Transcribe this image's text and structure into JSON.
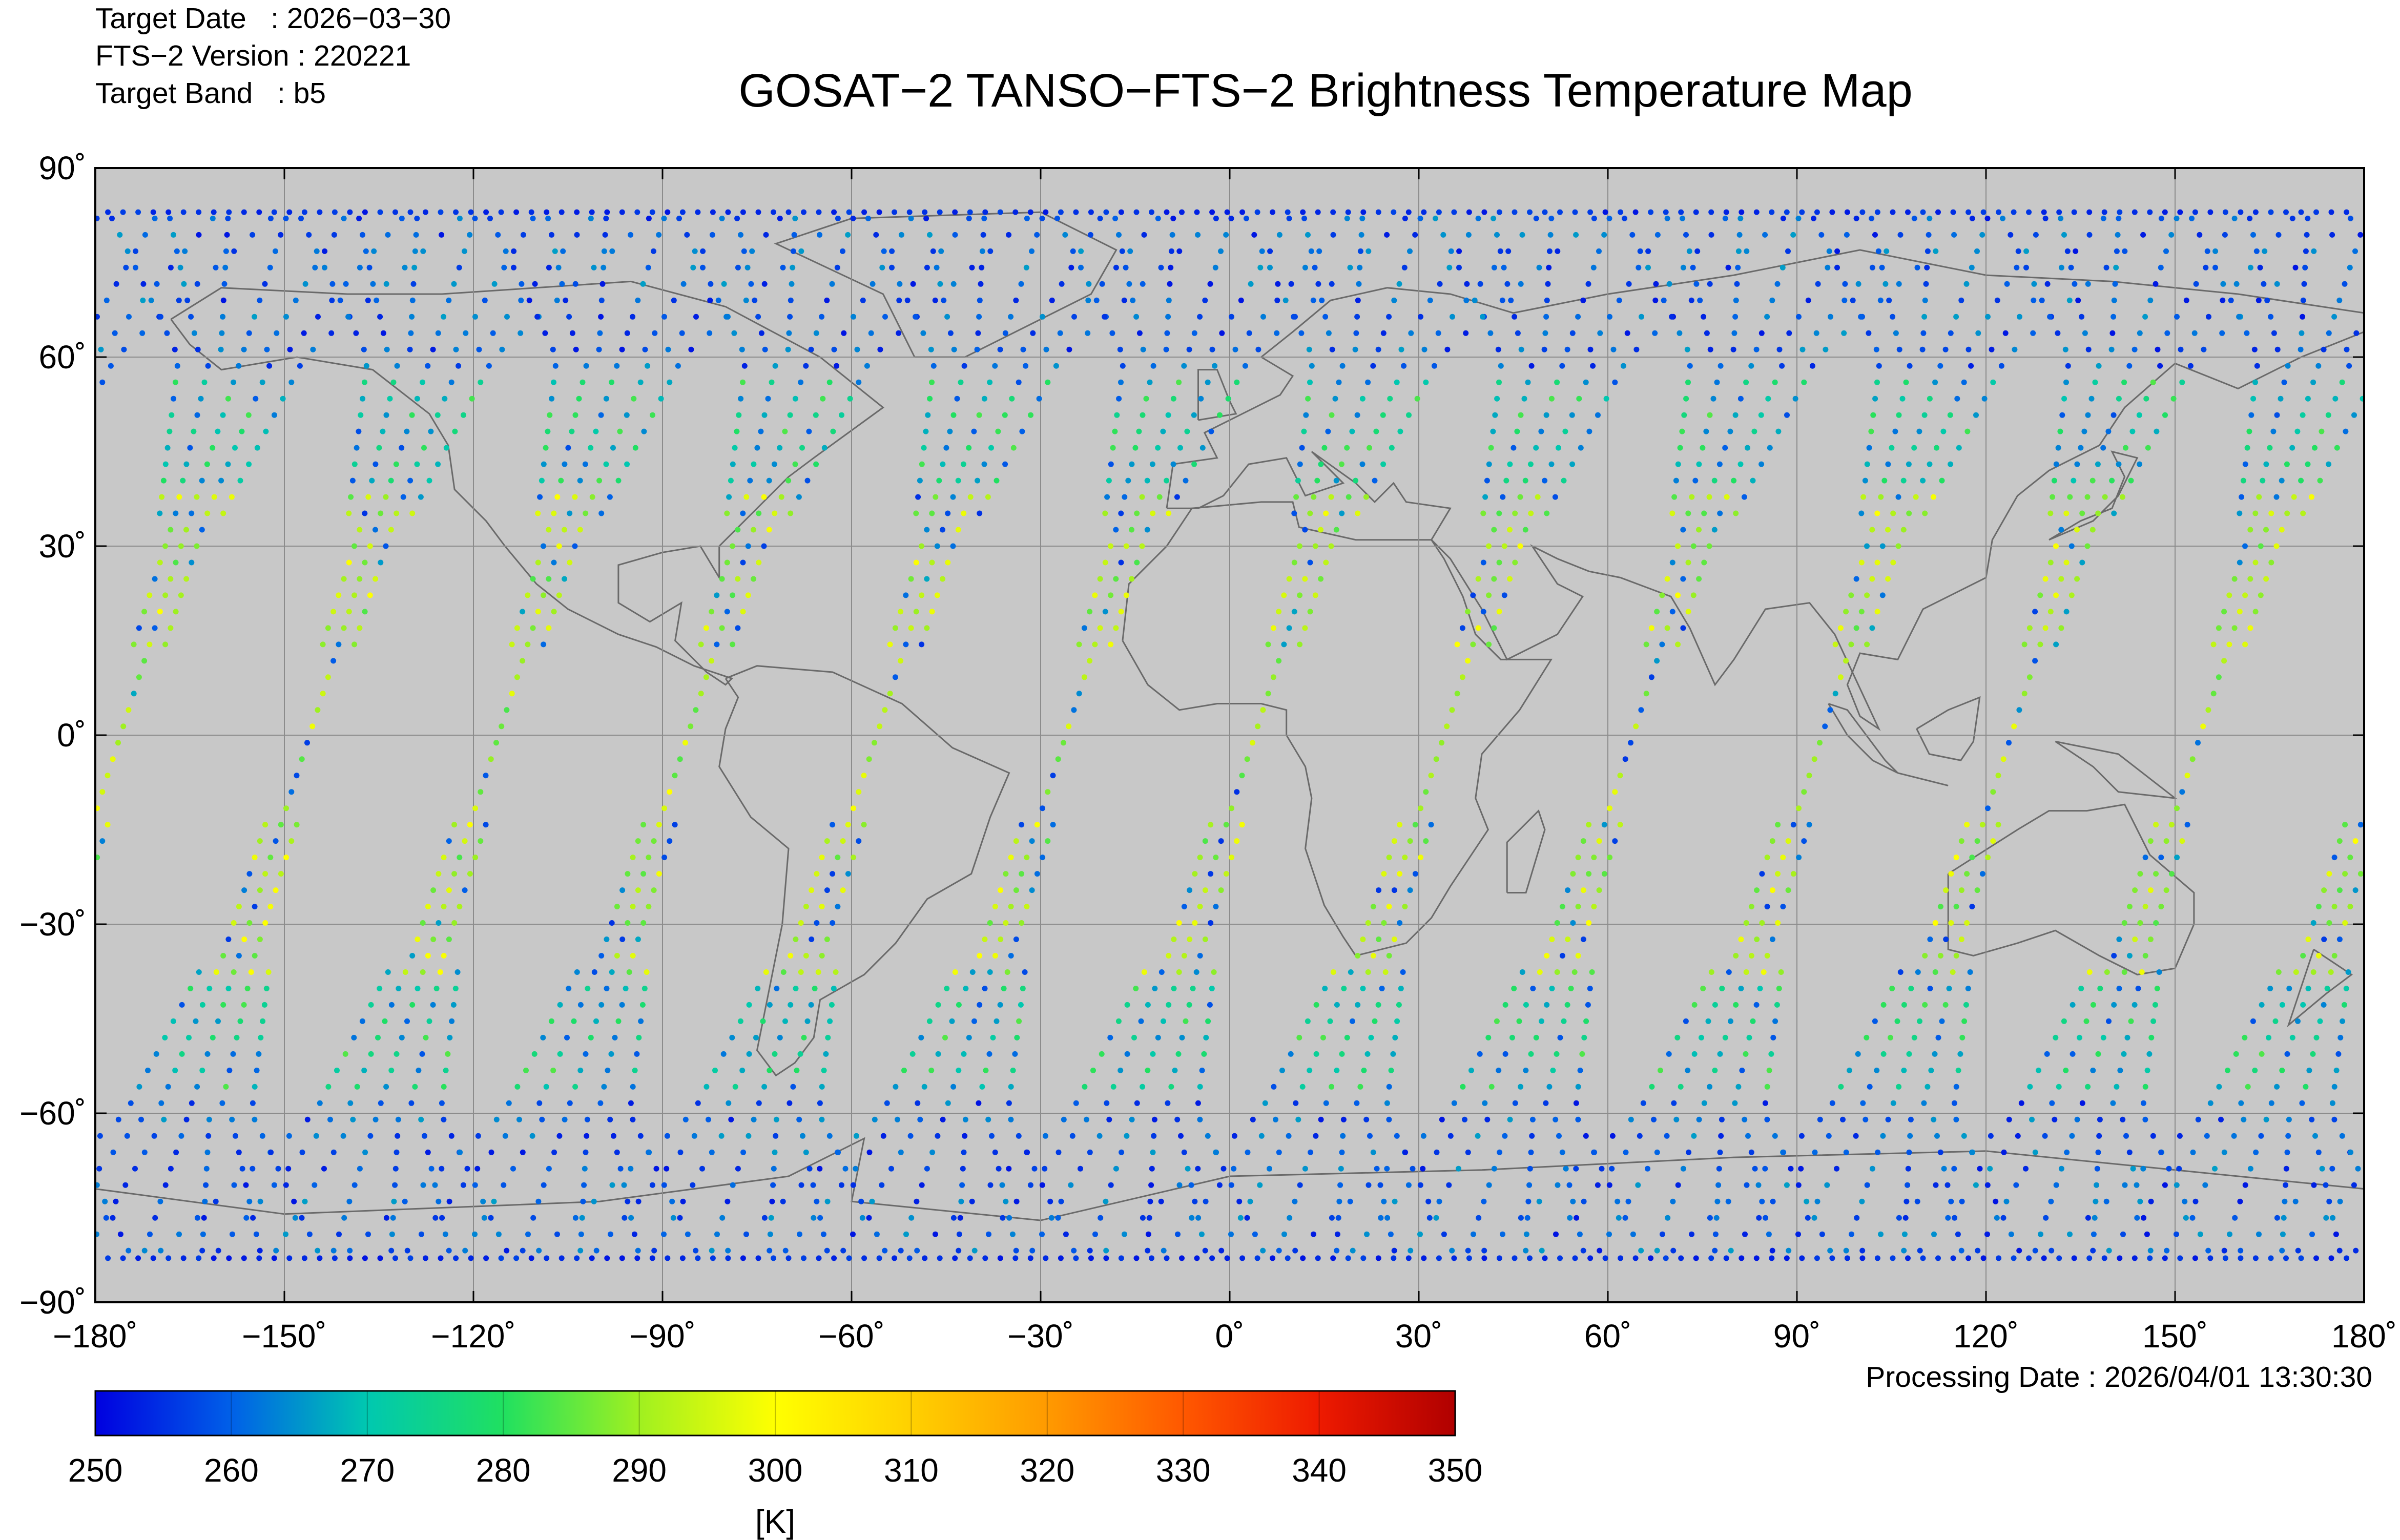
{
  "header": {
    "target_date_label": "Target Date",
    "target_date_value": "2026−03−30",
    "version_label": "FTS−2 Version",
    "version_value": "220221",
    "band_label": "Target Band",
    "band_value": "b5"
  },
  "title": "GOSAT−2 TANSO−FTS−2 Brightness Temperature Map",
  "processing": {
    "label": "Processing Date",
    "value": "2026/04/01 13:30:30"
  },
  "map": {
    "projection": "equirectangular",
    "lon_range": [
      -180,
      180
    ],
    "lat_range": [
      -90,
      90
    ],
    "background_color": "#c8c8c8",
    "gridlines": true,
    "lon_ticks": [
      "−180˚",
      "−150˚",
      "−120˚",
      "−90˚",
      "−60˚",
      "−30˚",
      "0˚",
      "30˚",
      "60˚",
      "90˚",
      "120˚",
      "150˚",
      "180˚"
    ],
    "lat_ticks": [
      "90˚",
      "60˚",
      "30˚",
      "0˚",
      "−30˚",
      "−60˚",
      "−90˚"
    ]
  },
  "colorbar": {
    "min": 250,
    "max": 350,
    "tick_labels": [
      "250",
      "260",
      "270",
      "280",
      "290",
      "300",
      "310",
      "320",
      "330",
      "340",
      "350"
    ],
    "unit": "[K]",
    "colors": [
      "#0000e0",
      "#0060e8",
      "#00c8b0",
      "#20e060",
      "#a0f020",
      "#ffff00",
      "#ffd000",
      "#ff9a00",
      "#ff5800",
      "#ee1a00",
      "#b00000"
    ]
  }
}
